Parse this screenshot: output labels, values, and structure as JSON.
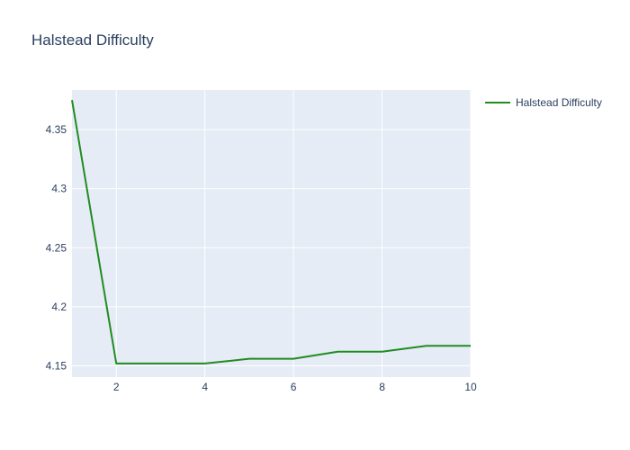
{
  "chart_data": {
    "type": "line",
    "title": "Halstead Difficulty",
    "xlabel": "",
    "ylabel": "",
    "xlim": [
      1,
      10
    ],
    "ylim": [
      4.1405,
      4.3835
    ],
    "x_ticks": [
      2,
      4,
      6,
      8,
      10
    ],
    "y_ticks": [
      4.15,
      4.2,
      4.25,
      4.3,
      4.35
    ],
    "x_tick_labels": [
      "2",
      "4",
      "6",
      "8",
      "10"
    ],
    "y_tick_labels": [
      "4.15",
      "4.2",
      "4.25",
      "4.3",
      "4.35"
    ],
    "grid": true,
    "legend_position": "top-right",
    "series": [
      {
        "name": "Halstead Difficulty",
        "color": "#228b22",
        "x": [
          1,
          2,
          3,
          4,
          5,
          6,
          7,
          8,
          9,
          10
        ],
        "y": [
          4.375,
          4.152,
          4.152,
          4.152,
          4.156,
          4.156,
          4.162,
          4.162,
          4.167,
          4.167
        ]
      }
    ]
  },
  "colors": {
    "plot_background": "#e5ecf6",
    "grid": "#ffffff",
    "text": "#2a3f5f"
  }
}
